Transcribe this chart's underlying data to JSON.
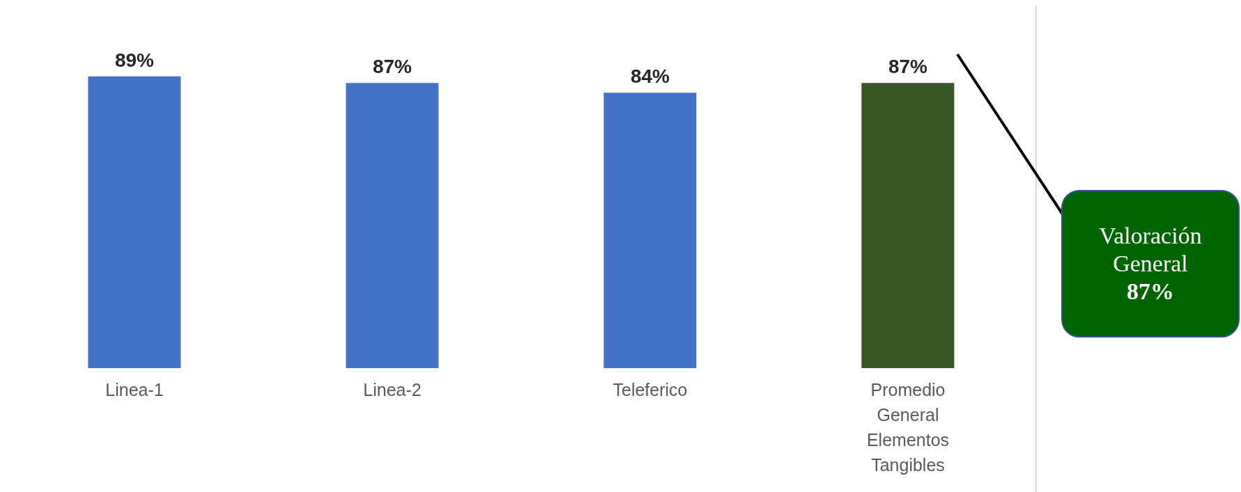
{
  "chart_data": {
    "type": "bar",
    "categories": [
      "Linea-1",
      "Linea-2",
      "Teleferico",
      "Promedio General Elementos Tangibles"
    ],
    "values": [
      89,
      87,
      84,
      87
    ],
    "value_labels": [
      "89%",
      "87%",
      "84%",
      "87%"
    ],
    "colors": [
      "#4472c4",
      "#4472c4",
      "#4472c4",
      "#375623"
    ],
    "annotations": [
      "Valoración General 87%"
    ]
  }
}
